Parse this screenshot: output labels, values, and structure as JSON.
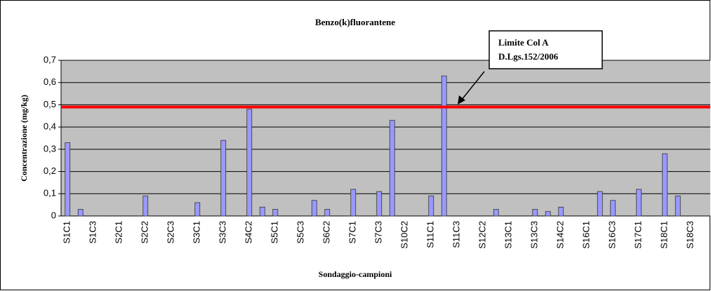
{
  "chart_data": {
    "type": "bar",
    "title": "Benzo(k)fluorantene",
    "x_label": "Sondaggio-campioni",
    "y_label": "Concentrazione (mg/kg)",
    "categories": [
      "S1C1",
      null,
      "S1C3",
      null,
      "S2C1",
      null,
      "S2C2",
      null,
      "S2C3",
      null,
      "S3C1",
      null,
      "S3C3",
      null,
      "S4C2",
      null,
      "S5C1",
      null,
      "S5C3",
      null,
      "S6C2",
      null,
      "S7C1",
      null,
      "S7C3",
      null,
      "S10C2",
      null,
      "S11C1",
      null,
      "S11C3",
      null,
      "S12C2",
      null,
      "S13C1",
      null,
      "S13C3",
      null,
      "S14C2",
      null,
      "S16C1",
      null,
      "S16C3",
      null,
      "S17C1",
      null,
      "S18C1",
      null,
      "S18C3",
      null
    ],
    "values": [
      0.33,
      0.03,
      0,
      0,
      0,
      0,
      0.09,
      0,
      0,
      0,
      0.06,
      0,
      0.34,
      0,
      0.48,
      0.04,
      0.03,
      0,
      0,
      0.07,
      0.03,
      0,
      0.12,
      0,
      0.11,
      0.43,
      0,
      0,
      0.09,
      0.63,
      0,
      0,
      0,
      0.03,
      0,
      0,
      0.03,
      0.02,
      0.04,
      0,
      0,
      0.11,
      0.07,
      0,
      0.12,
      0,
      0.28,
      0.09,
      0,
      0
    ],
    "color": "#9999ff",
    "ylim": [
      0,
      0.7
    ],
    "yticks": [
      0,
      {
        "value": 0.1,
        "label": "0,1"
      },
      {
        "value": 0.2,
        "label": "0,2"
      },
      {
        "value": 0.3,
        "label": "0,3"
      },
      {
        "value": 0.4,
        "label": "0,4"
      },
      {
        "value": 0.5,
        "label": "0,5"
      },
      {
        "value": 0.6,
        "label": "0,6"
      },
      {
        "value": 0.7,
        "label": "0,7"
      }
    ],
    "grid": true,
    "reference_line": {
      "value": 0.49,
      "color": "#ff0000"
    },
    "annotation": [
      "Limite Col A",
      "D.Lgs.152/2006"
    ]
  }
}
